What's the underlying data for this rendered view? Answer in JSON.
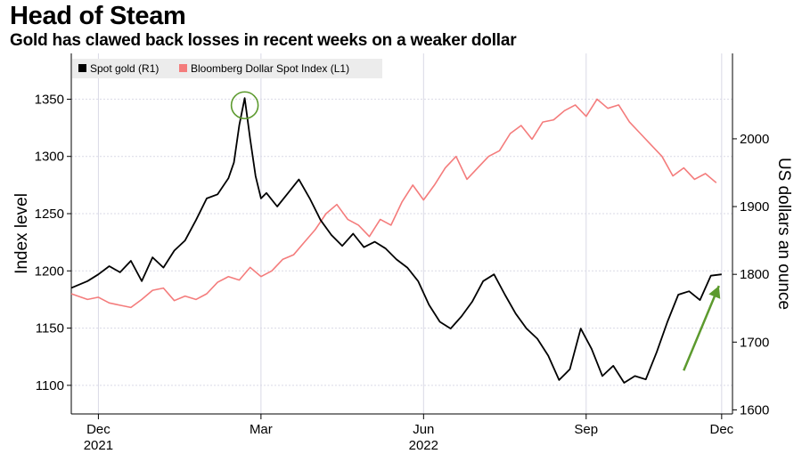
{
  "header": {
    "title": "Head of Steam",
    "subtitle": "Gold has clawed back losses in recent weeks on a weaker dollar"
  },
  "colors": {
    "gold_line": "#000000",
    "dollar_line": "#f47c7c",
    "grid": "#d9d9e6",
    "axis": "#000000",
    "annotation": "#5c9a2e",
    "legend_bg": "#ececec"
  },
  "chart_data": {
    "type": "line",
    "title": "Head of Steam",
    "subtitle": "Gold has clawed back losses in recent weeks on a weaker dollar",
    "x_range": [
      0,
      12.2
    ],
    "x_ticks": [
      {
        "x": 0.5,
        "label": "Dec",
        "year": "2021"
      },
      {
        "x": 3.5,
        "label": "Mar",
        "year": ""
      },
      {
        "x": 6.5,
        "label": "Jun",
        "year": "2022"
      },
      {
        "x": 9.5,
        "label": "Sep",
        "year": ""
      },
      {
        "x": 12.0,
        "label": "Dec",
        "year": ""
      }
    ],
    "left_axis": {
      "label": "Index level",
      "min": 1075,
      "max": 1390,
      "ticks": [
        1100,
        1150,
        1200,
        1250,
        1300,
        1350
      ]
    },
    "right_axis": {
      "label": "US dollars an ounce",
      "min": 1594,
      "max": 2126,
      "ticks": [
        1600,
        1700,
        1800,
        1900,
        2000
      ]
    },
    "legend": {
      "placement": "top-left"
    },
    "series": [
      {
        "name": "Spot gold (R1)",
        "axis": "right",
        "color": "#000000",
        "x": [
          0.0,
          0.3,
          0.5,
          0.7,
          0.9,
          1.1,
          1.3,
          1.5,
          1.7,
          1.9,
          2.1,
          2.3,
          2.5,
          2.7,
          2.9,
          3.0,
          3.1,
          3.2,
          3.3,
          3.4,
          3.5,
          3.6,
          3.8,
          4.0,
          4.2,
          4.4,
          4.6,
          4.8,
          5.0,
          5.2,
          5.4,
          5.6,
          5.8,
          6.0,
          6.2,
          6.4,
          6.6,
          6.8,
          7.0,
          7.2,
          7.4,
          7.6,
          7.8,
          8.0,
          8.2,
          8.4,
          8.6,
          8.8,
          9.0,
          9.2,
          9.4,
          9.6,
          9.8,
          10.0,
          10.2,
          10.4,
          10.6,
          10.8,
          11.0,
          11.2,
          11.4,
          11.6,
          11.8,
          12.0
        ],
        "values": [
          1780,
          1790,
          1800,
          1812,
          1803,
          1820,
          1790,
          1825,
          1810,
          1835,
          1850,
          1880,
          1912,
          1918,
          1942,
          1965,
          2020,
          2060,
          2000,
          1945,
          1912,
          1920,
          1900,
          1920,
          1940,
          1912,
          1880,
          1858,
          1842,
          1860,
          1840,
          1848,
          1838,
          1822,
          1810,
          1790,
          1755,
          1730,
          1720,
          1738,
          1760,
          1790,
          1800,
          1770,
          1742,
          1720,
          1705,
          1680,
          1644,
          1660,
          1720,
          1690,
          1650,
          1665,
          1640,
          1650,
          1645,
          1685,
          1730,
          1770,
          1775,
          1762,
          1798,
          1800
        ]
      },
      {
        "name": "Bloomberg Dollar Spot Index (L1)",
        "axis": "left",
        "color": "#f47c7c",
        "x": [
          0.0,
          0.3,
          0.5,
          0.7,
          0.9,
          1.1,
          1.3,
          1.5,
          1.7,
          1.9,
          2.1,
          2.3,
          2.5,
          2.7,
          2.9,
          3.1,
          3.3,
          3.5,
          3.7,
          3.9,
          4.1,
          4.3,
          4.5,
          4.7,
          4.9,
          5.1,
          5.3,
          5.5,
          5.7,
          5.9,
          6.1,
          6.3,
          6.5,
          6.7,
          6.9,
          7.1,
          7.3,
          7.5,
          7.7,
          7.9,
          8.1,
          8.3,
          8.5,
          8.7,
          8.9,
          9.1,
          9.3,
          9.5,
          9.7,
          9.9,
          10.1,
          10.3,
          10.5,
          10.7,
          10.9,
          11.1,
          11.3,
          11.5,
          11.7,
          11.9
        ],
        "values": [
          1180,
          1175,
          1177,
          1172,
          1170,
          1168,
          1175,
          1183,
          1185,
          1174,
          1178,
          1175,
          1180,
          1190,
          1195,
          1192,
          1203,
          1195,
          1200,
          1210,
          1214,
          1225,
          1236,
          1250,
          1258,
          1245,
          1240,
          1230,
          1245,
          1240,
          1260,
          1275,
          1262,
          1275,
          1290,
          1300,
          1280,
          1290,
          1300,
          1305,
          1320,
          1327,
          1315,
          1330,
          1332,
          1340,
          1345,
          1335,
          1350,
          1342,
          1345,
          1330,
          1320,
          1310,
          1300,
          1283,
          1290,
          1280,
          1285,
          1277
        ]
      }
    ]
  }
}
